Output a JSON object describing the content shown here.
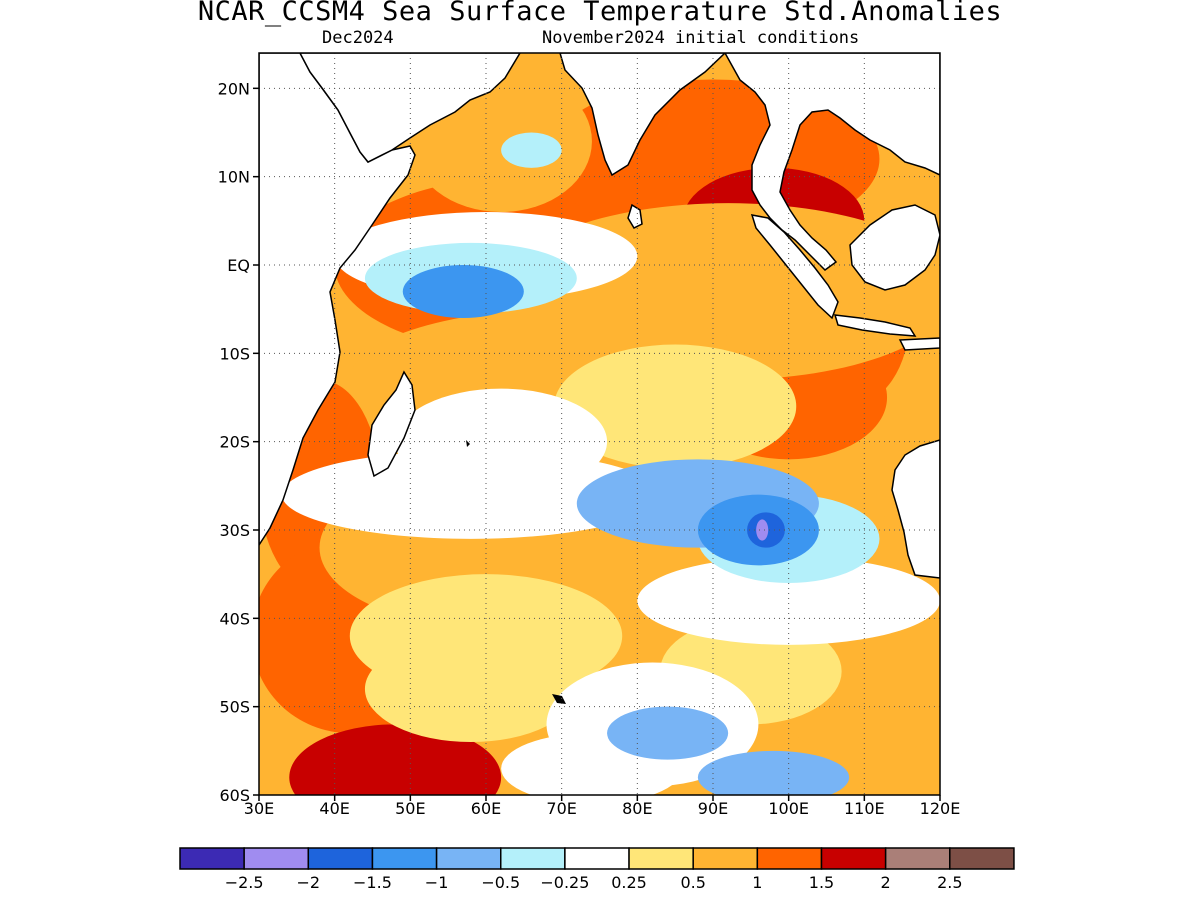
{
  "title": "NCAR_CCSM4 Sea Surface Temperature Std.Anomalies",
  "subtitle_left": "Dec2024",
  "subtitle_right": "November2024 initial conditions",
  "map": {
    "lon_range": [
      30,
      120
    ],
    "lat_range": [
      -60,
      24
    ],
    "lat_ticks": [
      {
        "value": 20,
        "label": "20N"
      },
      {
        "value": 10,
        "label": "10N"
      },
      {
        "value": 0,
        "label": "EQ"
      },
      {
        "value": -10,
        "label": "10S"
      },
      {
        "value": -20,
        "label": "20S"
      },
      {
        "value": -30,
        "label": "30S"
      },
      {
        "value": -40,
        "label": "40S"
      },
      {
        "value": -50,
        "label": "50S"
      },
      {
        "value": -60,
        "label": "60S"
      }
    ],
    "lon_ticks": [
      {
        "value": 30,
        "label": "30E"
      },
      {
        "value": 40,
        "label": "40E"
      },
      {
        "value": 50,
        "label": "50E"
      },
      {
        "value": 60,
        "label": "60E"
      },
      {
        "value": 70,
        "label": "70E"
      },
      {
        "value": 80,
        "label": "80E"
      },
      {
        "value": 90,
        "label": "90E"
      },
      {
        "value": 100,
        "label": "100E"
      },
      {
        "value": 110,
        "label": "110E"
      },
      {
        "value": 120,
        "label": "120E"
      }
    ],
    "grid": "dotted",
    "projection": "lat-lon"
  },
  "colorbar": {
    "colors": [
      "#3c2ab4",
      "#a08cf0",
      "#1e64dc",
      "#3c96f0",
      "#78b4f5",
      "#b4f0fa",
      "#ffffff",
      "#ffe678",
      "#ffb432",
      "#ff6400",
      "#c80000",
      "#aa7f78",
      "#7d4f46"
    ],
    "labels": [
      "−2.5",
      "−2",
      "−1.5",
      "−1",
      "−0.5",
      "−0.25",
      "0.25",
      "0.5",
      "1",
      "1.5",
      "2",
      "2.5"
    ]
  },
  "anomaly_blobs": [
    {
      "lon": 65,
      "lat": 0,
      "rx": 25,
      "ry": 10,
      "level": 3
    },
    {
      "lon": 38,
      "lat": -25,
      "rx": 8,
      "ry": 12,
      "level": 3
    },
    {
      "lon": 42,
      "lat": -42,
      "rx": 13,
      "ry": 11,
      "level": 3
    },
    {
      "lon": 48,
      "lat": -58,
      "rx": 14,
      "ry": 6,
      "level": 4
    },
    {
      "lon": 90,
      "lat": 12,
      "rx": 22,
      "ry": 9,
      "level": 3
    },
    {
      "lon": 98,
      "lat": 5,
      "rx": 12,
      "ry": 6,
      "level": 4
    },
    {
      "lon": 108,
      "lat": -6,
      "rx": 8,
      "ry": 10,
      "level": 3
    },
    {
      "lon": 100,
      "lat": -15,
      "rx": 13,
      "ry": 7,
      "level": 3
    },
    {
      "lon": 62,
      "lat": 14,
      "rx": 12,
      "ry": 8,
      "level": 2
    },
    {
      "lon": 92,
      "lat": -3,
      "rx": 30,
      "ry": 10,
      "level": 2
    },
    {
      "lon": 70,
      "lat": -13,
      "rx": 28,
      "ry": 8,
      "level": 2
    },
    {
      "lon": 60,
      "lat": -32,
      "rx": 22,
      "ry": 9,
      "level": 2
    },
    {
      "lon": 110,
      "lat": -48,
      "rx": 12,
      "ry": 8,
      "level": 2
    },
    {
      "lon": 78,
      "lat": -45,
      "rx": 14,
      "ry": 8,
      "level": 2
    },
    {
      "lon": 118,
      "lat": -33,
      "rx": 6,
      "ry": 10,
      "level": 2
    },
    {
      "lon": 85,
      "lat": -16,
      "rx": 16,
      "ry": 7,
      "level": 1
    },
    {
      "lon": 60,
      "lat": -42,
      "rx": 18,
      "ry": 7,
      "level": 1
    },
    {
      "lon": 95,
      "lat": -46,
      "rx": 12,
      "ry": 6,
      "level": 1
    },
    {
      "lon": 58,
      "lat": -48,
      "rx": 14,
      "ry": 6,
      "level": 1
    },
    {
      "lon": 62,
      "lat": -20,
      "rx": 14,
      "ry": 6,
      "level": 0
    },
    {
      "lon": 58,
      "lat": -26,
      "rx": 25,
      "ry": 5,
      "level": 0
    },
    {
      "lon": 60,
      "lat": 1,
      "rx": 20,
      "ry": 5,
      "level": 0
    },
    {
      "lon": 100,
      "lat": -38,
      "rx": 20,
      "ry": 5,
      "level": 0
    },
    {
      "lon": 82,
      "lat": -52,
      "rx": 14,
      "ry": 7,
      "level": 0
    },
    {
      "lon": 74,
      "lat": -57,
      "rx": 12,
      "ry": 4,
      "level": 0
    },
    {
      "lon": 58,
      "lat": -1.5,
      "rx": 14,
      "ry": 4,
      "level": -1
    },
    {
      "lon": 100,
      "lat": -31,
      "rx": 12,
      "ry": 5,
      "level": -1
    },
    {
      "lon": 66,
      "lat": 13,
      "rx": 4,
      "ry": 2,
      "level": -1
    },
    {
      "lon": 88,
      "lat": -27,
      "rx": 16,
      "ry": 5,
      "level": -2
    },
    {
      "lon": 84,
      "lat": -53,
      "rx": 8,
      "ry": 3,
      "level": -2
    },
    {
      "lon": 98,
      "lat": -58,
      "rx": 10,
      "ry": 3,
      "level": -2
    },
    {
      "lon": 57,
      "lat": -3,
      "rx": 8,
      "ry": 3,
      "level": -3
    },
    {
      "lon": 96,
      "lat": -30,
      "rx": 8,
      "ry": 4,
      "level": -3
    },
    {
      "lon": 97,
      "lat": -30,
      "rx": 2.5,
      "ry": 2,
      "level": -4
    },
    {
      "lon": 96.5,
      "lat": -30,
      "rx": 0.8,
      "ry": 1.2,
      "level": -5
    }
  ]
}
